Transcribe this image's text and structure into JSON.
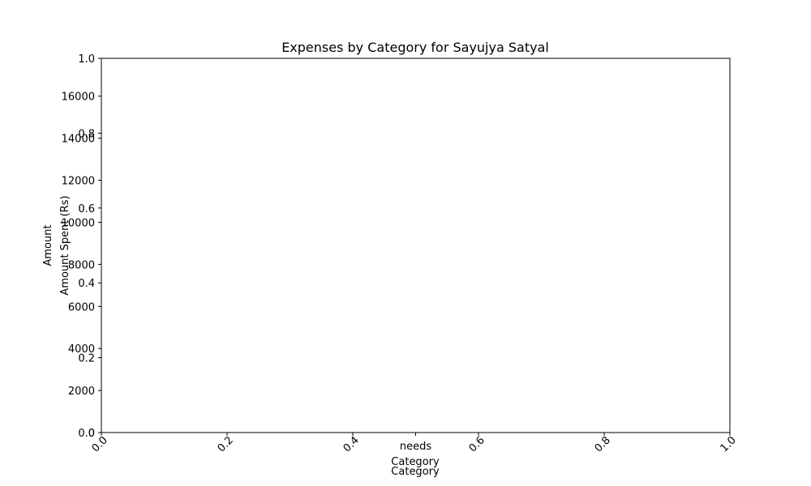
{
  "chart_data": {
    "type": "bar",
    "title": "Expenses by Category for Sayujya Satyal",
    "categories": [
      "needs"
    ],
    "series": [
      {
        "values": [
          0
        ]
      }
    ],
    "x_axes": [
      {
        "label": "Category",
        "ticks": [
          "0.0",
          "0.2",
          "0.4",
          "0.6",
          "0.8",
          "1.0"
        ],
        "tick_rotation": 45
      },
      {
        "label": "Category"
      }
    ],
    "y_axes": [
      {
        "label": "Amount",
        "ticks": [
          "0.0",
          "0.2",
          "0.4",
          "0.6",
          "0.8",
          "1.0"
        ],
        "ylim": [
          0,
          1
        ]
      },
      {
        "label": "Amount Spent (Rs)",
        "ticks": [
          "0",
          "2000",
          "4000",
          "6000",
          "8000",
          "10000",
          "12000",
          "14000",
          "16000"
        ],
        "ylim": [
          0,
          17800
        ]
      }
    ],
    "grid": false,
    "legend": "none"
  },
  "colors": {
    "axes": "#000000",
    "background": "#ffffff"
  }
}
